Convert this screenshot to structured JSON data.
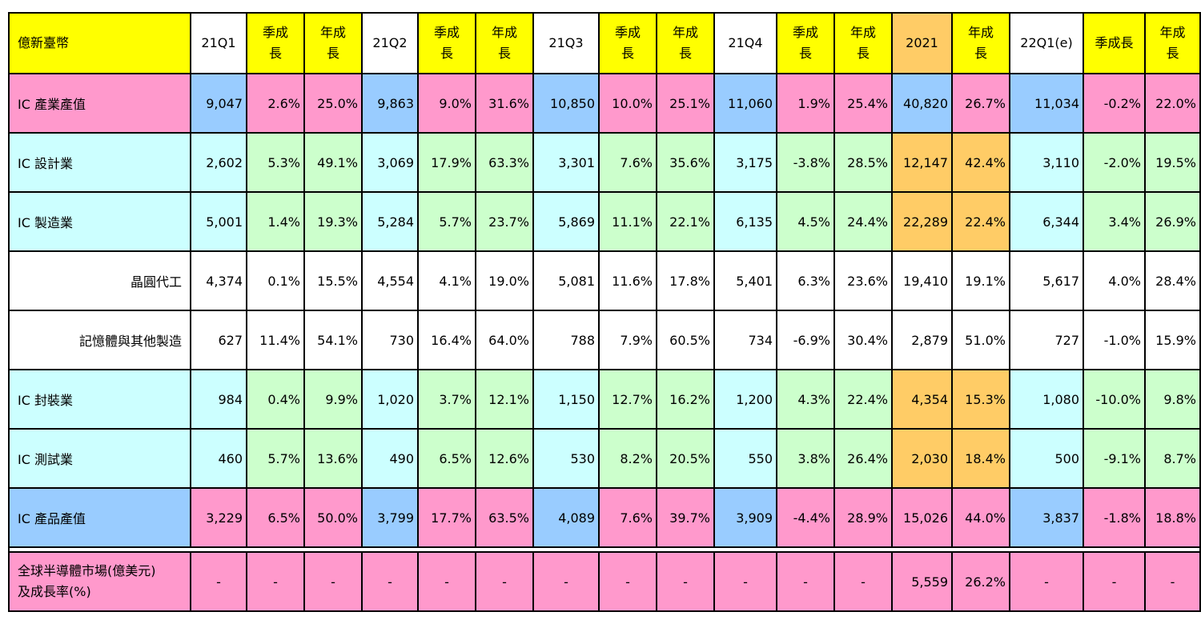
{
  "headers": [
    "億新臺幣",
    "21Q1",
    "季成長",
    "年成長",
    "21Q2",
    "季成長",
    "年成長",
    "21Q3",
    "季成長",
    "年成長",
    "21Q4",
    "季成長",
    "年成長",
    "2021",
    "年成長",
    "22Q1(e)",
    "季成長",
    "年成長"
  ],
  "rows": [
    {
      "label": "IC 產業產值",
      "cells": [
        "9,047",
        "2.6%",
        "25.0%",
        "9,863",
        "9.0%",
        "31.6%",
        "10,850",
        "10.0%",
        "25.1%",
        "11,060",
        "1.9%",
        "25.4%",
        "40,820",
        "26.7%",
        "11,034",
        "-0.2%",
        "22.0%"
      ]
    },
    {
      "label": "IC 設計業",
      "cells": [
        "2,602",
        "5.3%",
        "49.1%",
        "3,069",
        "17.9%",
        "63.3%",
        "3,301",
        "7.6%",
        "35.6%",
        "3,175",
        "-3.8%",
        "28.5%",
        "12,147",
        "42.4%",
        "3,110",
        "-2.0%",
        "19.5%"
      ]
    },
    {
      "label": "IC 製造業",
      "cells": [
        "5,001",
        "1.4%",
        "19.3%",
        "5,284",
        "5.7%",
        "23.7%",
        "5,869",
        "11.1%",
        "22.1%",
        "6,135",
        "4.5%",
        "24.4%",
        "22,289",
        "22.4%",
        "6,344",
        "3.4%",
        "26.9%"
      ]
    },
    {
      "label": "晶圓代工",
      "cells": [
        "4,374",
        "0.1%",
        "15.5%",
        "4,554",
        "4.1%",
        "19.0%",
        "5,081",
        "11.6%",
        "17.8%",
        "5,401",
        "6.3%",
        "23.6%",
        "19,410",
        "19.1%",
        "5,617",
        "4.0%",
        "28.4%"
      ]
    },
    {
      "label": "記憶體與其他製造",
      "cells": [
        "627",
        "11.4%",
        "54.1%",
        "730",
        "16.4%",
        "64.0%",
        "788",
        "7.9%",
        "60.5%",
        "734",
        "-6.9%",
        "30.4%",
        "2,879",
        "51.0%",
        "727",
        "-1.0%",
        "15.9%"
      ]
    },
    {
      "label": "IC 封裝業",
      "cells": [
        "984",
        "0.4%",
        "9.9%",
        "1,020",
        "3.7%",
        "12.1%",
        "1,150",
        "12.7%",
        "16.2%",
        "1,200",
        "4.3%",
        "22.4%",
        "4,354",
        "15.3%",
        "1,080",
        "-10.0%",
        "9.8%"
      ]
    },
    {
      "label": "IC 測試業",
      "cells": [
        "460",
        "5.7%",
        "13.6%",
        "490",
        "6.5%",
        "12.6%",
        "530",
        "8.2%",
        "20.5%",
        "550",
        "3.8%",
        "26.4%",
        "2,030",
        "18.4%",
        "500",
        "-9.1%",
        "8.7%"
      ]
    },
    {
      "label": "IC 產品產值",
      "cells": [
        "3,229",
        "6.5%",
        "50.0%",
        "3,799",
        "17.7%",
        "63.5%",
        "4,089",
        "7.6%",
        "39.7%",
        "3,909",
        "-4.4%",
        "28.9%",
        "15,026",
        "44.0%",
        "3,837",
        "-1.8%",
        "18.8%"
      ]
    }
  ],
  "world": {
    "label_line1": "全球半導體市場(億美元)",
    "label_line2": "及成長率(%)",
    "cells": [
      "-",
      "-",
      "-",
      "-",
      "-",
      "-",
      "-",
      "-",
      "-",
      "-",
      "-",
      "-",
      "5,559",
      "26.2%",
      "-",
      "-",
      "-"
    ]
  },
  "colors": {
    "yellow": "#ffff00",
    "pink": "#ff99cc",
    "blue": "#99ccff",
    "cyan": "#ccffff",
    "green": "#ccffcc",
    "orange": "#ffcc66",
    "white": "#ffffff"
  }
}
